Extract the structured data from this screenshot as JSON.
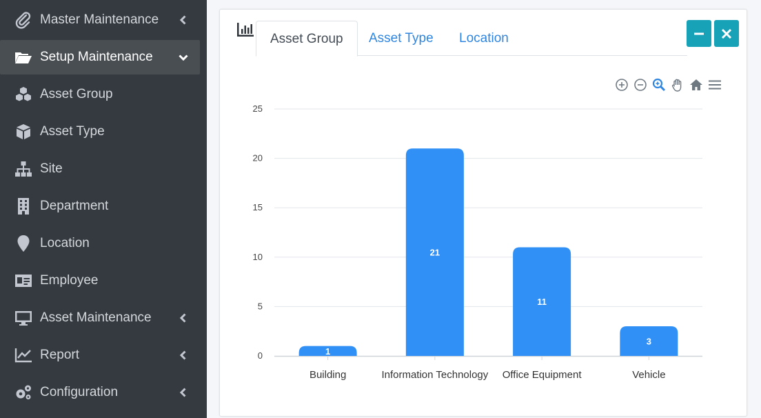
{
  "sidebar": {
    "items": [
      {
        "label": "Master Maintenance",
        "icon": "paperclip-icon",
        "chevron": "left",
        "active": false
      },
      {
        "label": "Setup Maintenance",
        "icon": "folder-open-icon",
        "chevron": "down",
        "active": true
      },
      {
        "label": "Asset Group",
        "icon": "cubes-icon",
        "chevron": "",
        "active": false
      },
      {
        "label": "Asset Type",
        "icon": "cube-icon",
        "chevron": "",
        "active": false
      },
      {
        "label": "Site",
        "icon": "sitemap-icon",
        "chevron": "",
        "active": false
      },
      {
        "label": "Department",
        "icon": "building-icon",
        "chevron": "",
        "active": false
      },
      {
        "label": "Location",
        "icon": "map-marker-icon",
        "chevron": "",
        "active": false
      },
      {
        "label": "Employee",
        "icon": "id-card-icon",
        "chevron": "",
        "active": false
      },
      {
        "label": "Asset Maintenance",
        "icon": "desktop-icon",
        "chevron": "left",
        "active": false
      },
      {
        "label": "Report",
        "icon": "chart-line-icon",
        "chevron": "left",
        "active": false
      },
      {
        "label": "Configuration",
        "icon": "cogs-icon",
        "chevron": "left",
        "active": false
      }
    ]
  },
  "card": {
    "header_icon": "bar-chart-icon",
    "tabs": [
      {
        "label": "Asset Group",
        "active": true
      },
      {
        "label": "Asset Type",
        "active": false
      },
      {
        "label": "Location",
        "active": false
      }
    ],
    "tools": {
      "collapse_icon": "minus-icon",
      "remove_icon": "times-icon"
    }
  },
  "chart_toolbar": [
    "zoom-in-icon",
    "zoom-out-icon",
    "selection-zoom-icon",
    "pan-hand-icon",
    "reset-home-icon",
    "menu-icon"
  ],
  "chart_data": {
    "type": "bar",
    "categories": [
      "Building",
      "Information Technology",
      "Office Equipment",
      "Vehicle"
    ],
    "values": [
      1,
      21,
      11,
      3
    ],
    "title": "",
    "xlabel": "",
    "ylabel": "",
    "ylim": [
      0,
      25
    ],
    "yticks": [
      0,
      5,
      10,
      15,
      20,
      25
    ],
    "bar_color": "#3090f5",
    "data_labels": true,
    "grid": true
  }
}
